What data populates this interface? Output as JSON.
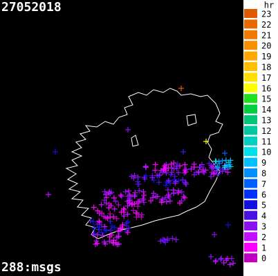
{
  "header": {
    "title": "27052018"
  },
  "footer": {
    "message_count": "288:msgs"
  },
  "legend": {
    "title": "hr",
    "items": [
      {
        "label": "23",
        "color": "#e05a00"
      },
      {
        "label": "22",
        "color": "#e86a00"
      },
      {
        "label": "21",
        "color": "#f07a00"
      },
      {
        "label": "20",
        "color": "#f89000"
      },
      {
        "label": "19",
        "color": "#ffa800"
      },
      {
        "label": "18",
        "color": "#ffc000"
      },
      {
        "label": "17",
        "color": "#ffe000"
      },
      {
        "label": "16",
        "color": "#ffff00"
      },
      {
        "label": "15",
        "color": "#20e020"
      },
      {
        "label": "14",
        "color": "#00d040"
      },
      {
        "label": "13",
        "color": "#00c878"
      },
      {
        "label": "12",
        "color": "#00c8a0"
      },
      {
        "label": "11",
        "color": "#00d0c0"
      },
      {
        "label": "10",
        "color": "#00e0e8"
      },
      {
        "label": "9",
        "color": "#00c0ff"
      },
      {
        "label": "8",
        "color": "#0090ff"
      },
      {
        "label": "7",
        "color": "#0060ff"
      },
      {
        "label": "6",
        "color": "#0030ff"
      },
      {
        "label": "5",
        "color": "#1010e0"
      },
      {
        "label": "4",
        "color": "#4a10e0"
      },
      {
        "label": "3",
        "color": "#8a10f0"
      },
      {
        "label": "2",
        "color": "#c010ff"
      },
      {
        "label": "1",
        "color": "#ff00ff"
      },
      {
        "label": "0",
        "color": "#c000c0"
      }
    ]
  }
}
